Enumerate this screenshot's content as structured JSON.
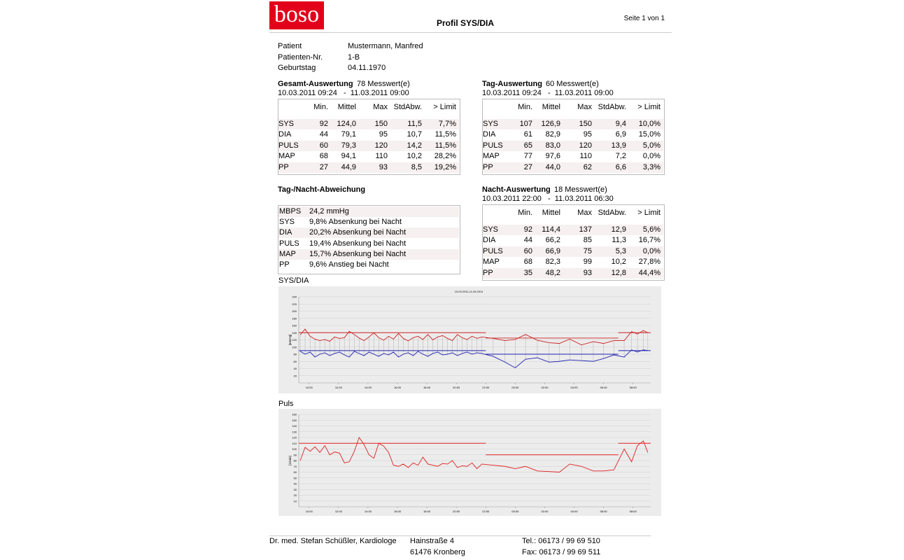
{
  "header": {
    "logo": "boso",
    "title": "Profil SYS/DIA",
    "page": "Seite 1 von 1"
  },
  "patient": {
    "rows": [
      [
        "Patient",
        "Mustermann, Manfred"
      ],
      [
        "Patienten-Nr.",
        "1-B"
      ],
      [
        "Geburtstag",
        "04.11.1970"
      ]
    ]
  },
  "tables": [
    {
      "title": "Gesamt-Auswertung",
      "count": "78 Messwert(e)",
      "range": "10.03.2011 09:24   -  11.03.2011 09:00",
      "header": [
        "Min.",
        "Mittel",
        "Max",
        "StdAbw.",
        "> Limit"
      ],
      "rows": [
        [
          "SYS",
          "92",
          "124,0",
          "150",
          "11,5",
          "7,7%"
        ],
        [
          "DIA",
          "44",
          "79,1",
          "95",
          "10,7",
          "11,5%"
        ],
        [
          "PULS",
          "60",
          "79,3",
          "120",
          "14,2",
          "11,5%"
        ],
        [
          "MAP",
          "68",
          "94,1",
          "110",
          "10,2",
          "28,2%"
        ],
        [
          "PP",
          "27",
          "44,9",
          "93",
          "8,5",
          "19,2%"
        ]
      ]
    },
    {
      "title": "Tag-Auswertung",
      "count": "60 Messwert(e)",
      "range": "10.03.2011 09:24   -  11.03.2011 09:00",
      "header": [
        "Min.",
        "Mittel",
        "Max",
        "StdAbw.",
        "> Limit"
      ],
      "rows": [
        [
          "SYS",
          "107",
          "126,9",
          "150",
          "9,4",
          "10,0%"
        ],
        [
          "DIA",
          "61",
          "82,9",
          "95",
          "6,9",
          "15,0%"
        ],
        [
          "PULS",
          "65",
          "83,0",
          "120",
          "13,9",
          "5,0%"
        ],
        [
          "MAP",
          "77",
          "97,6",
          "110",
          "7,2",
          "0,0%"
        ],
        [
          "PP",
          "27",
          "44,0",
          "62",
          "6,6",
          "3,3%"
        ]
      ]
    },
    {
      "title": "Nacht-Auswertung",
      "count": "18 Messwert(e)",
      "range": "10.03.2011 22:00   -  11.03.2011 06:30",
      "header": [
        "Min.",
        "Mittel",
        "Max",
        "StdAbw.",
        "> Limit"
      ],
      "rows": [
        [
          "SYS",
          "92",
          "114,4",
          "137",
          "12,9",
          "5,6%"
        ],
        [
          "DIA",
          "44",
          "66,2",
          "85",
          "11,3",
          "16,7%"
        ],
        [
          "PULS",
          "60",
          "66,9",
          "75",
          "5,3",
          "0,0%"
        ],
        [
          "MAP",
          "68",
          "82,3",
          "99",
          "10,2",
          "27,8%"
        ],
        [
          "PP",
          "35",
          "48,2",
          "93",
          "12,8",
          "44,4%"
        ]
      ]
    }
  ],
  "deviation": {
    "title": "Tag-/Nacht-Abweichung",
    "rows": [
      [
        "MBPS",
        "24,2 mmHg"
      ],
      [
        "SYS",
        "9,8% Absenkung bei Nacht"
      ],
      [
        "DIA",
        "20,2% Absenkung bei Nacht"
      ],
      [
        "PULS",
        "19,4% Absenkung bei Nacht"
      ],
      [
        "MAP",
        "15,7% Absenkung bei Nacht"
      ],
      [
        "PP",
        "9,6% Anstieg bei Nacht"
      ]
    ]
  },
  "chart_data": [
    {
      "type": "line",
      "title": "SYS/DIA",
      "subtitle": "10.03.2011-11.03.2011",
      "ylabel": "[mmHg]",
      "grid": true,
      "x": [
        9.4,
        9.73,
        10.07,
        10.4,
        10.73,
        11.07,
        11.4,
        11.73,
        12.07,
        12.4,
        12.73,
        13.07,
        13.4,
        13.73,
        14.07,
        14.4,
        14.73,
        15.07,
        15.4,
        15.73,
        16.07,
        16.4,
        16.73,
        17.07,
        17.4,
        17.73,
        18.07,
        18.4,
        18.73,
        19.07,
        19.4,
        19.73,
        20.07,
        20.4,
        20.73,
        21.07,
        21.4,
        21.73,
        22.5,
        23.3,
        24,
        24.7,
        25.5,
        26.3,
        27,
        27.7,
        28.5,
        29.3,
        30,
        30.7,
        31.4,
        31.9,
        32.3,
        32.7,
        33.0
      ],
      "xlim": [
        9.3,
        33.2
      ],
      "xticks": [
        {
          "value": 10,
          "label": "10:00"
        },
        {
          "value": 12,
          "label": "12:00"
        },
        {
          "value": 14,
          "label": "14:00"
        },
        {
          "value": 16,
          "label": "16:00"
        },
        {
          "value": 18,
          "label": "18:00"
        },
        {
          "value": 20,
          "label": "20:00"
        },
        {
          "value": 22,
          "label": "22:00"
        },
        {
          "value": 24,
          "label": "00:00"
        },
        {
          "value": 26,
          "label": "02:00"
        },
        {
          "value": 28,
          "label": "04:00"
        },
        {
          "value": 30,
          "label": "06:00"
        },
        {
          "value": 32,
          "label": "08:00"
        }
      ],
      "ylim": [
        0,
        240
      ],
      "yticks": [
        20,
        40,
        60,
        80,
        100,
        120,
        140,
        160,
        180,
        200,
        220,
        240
      ],
      "series": [
        {
          "color": "#cc2020",
          "values": [
            134,
            150,
            130,
            122,
            118,
            121,
            116,
            128,
            124,
            126,
            144,
            135,
            125,
            118,
            128,
            140,
            126,
            119,
            130,
            122,
            138,
            124,
            117,
            126,
            130,
            121,
            135,
            120,
            128,
            132,
            124,
            118,
            135,
            126,
            121,
            130,
            124,
            128,
            124,
            118,
            121,
            135,
            119,
            112,
            110,
            122,
            106,
            115,
            110,
            118,
            118,
            143,
            136,
            146,
            140
          ]
        },
        {
          "color": "#2020b0",
          "values": [
            88,
            80,
            86,
            72,
            80,
            84,
            76,
            82,
            86,
            78,
            72,
            88,
            82,
            76,
            86,
            80,
            74,
            82,
            78,
            86,
            72,
            80,
            84,
            76,
            88,
            80,
            74,
            82,
            86,
            78,
            80,
            84,
            76,
            82,
            86,
            80,
            84,
            82,
            74,
            58,
            42,
            66,
            70,
            58,
            60,
            64,
            62,
            60,
            68,
            78,
            72,
            92,
            86,
            92,
            90
          ]
        }
      ],
      "limit_lines": [
        {
          "color": "#cc2020",
          "x": [
            9.3,
            22
          ],
          "values": [
            140,
            140
          ]
        },
        {
          "color": "#cc2020",
          "x": [
            22,
            31
          ],
          "values": [
            125,
            125
          ]
        },
        {
          "color": "#cc2020",
          "x": [
            31,
            33.2
          ],
          "values": [
            140,
            140
          ]
        },
        {
          "color": "#2020b0",
          "x": [
            9.3,
            22
          ],
          "values": [
            90,
            90
          ]
        },
        {
          "color": "#2020b0",
          "x": [
            22,
            31
          ],
          "values": [
            80,
            80
          ]
        },
        {
          "color": "#2020b0",
          "x": [
            31,
            33.2
          ],
          "values": [
            90,
            90
          ]
        }
      ]
    },
    {
      "type": "line",
      "title": "Puls",
      "ylabel": "[1/min]",
      "grid": true,
      "x": [
        9.4,
        9.73,
        10.07,
        10.4,
        10.73,
        11.07,
        11.4,
        11.73,
        12.07,
        12.4,
        12.73,
        13.07,
        13.4,
        13.73,
        14.07,
        14.4,
        14.73,
        15.07,
        15.4,
        15.73,
        16.07,
        16.4,
        16.73,
        17.07,
        17.4,
        17.73,
        18.07,
        18.4,
        18.73,
        19.07,
        19.4,
        19.73,
        20.07,
        20.4,
        20.73,
        21.07,
        21.4,
        21.73,
        22.5,
        23.3,
        24,
        24.7,
        25.5,
        26.3,
        27,
        27.7,
        28.5,
        29.3,
        30,
        30.7,
        31.4,
        31.9,
        32.3,
        32.7,
        33.0
      ],
      "xlim": [
        9.3,
        33.2
      ],
      "xticks": [
        {
          "value": 10,
          "label": "10:00"
        },
        {
          "value": 12,
          "label": "12:00"
        },
        {
          "value": 14,
          "label": "14:00"
        },
        {
          "value": 16,
          "label": "16:00"
        },
        {
          "value": 18,
          "label": "18:00"
        },
        {
          "value": 20,
          "label": "20:00"
        },
        {
          "value": 22,
          "label": "22:00"
        },
        {
          "value": 24,
          "label": "00:00"
        },
        {
          "value": 26,
          "label": "02:00"
        },
        {
          "value": 28,
          "label": "04:00"
        },
        {
          "value": 30,
          "label": "06:00"
        },
        {
          "value": 32,
          "label": "08:00"
        }
      ],
      "ylim": [
        0,
        160
      ],
      "yticks": [
        10,
        20,
        30,
        40,
        50,
        60,
        70,
        80,
        90,
        100,
        110,
        120,
        130,
        140,
        150,
        160
      ],
      "series": [
        {
          "color": "#dd2020",
          "values": [
            80,
            103,
            96,
            104,
            94,
            106,
            90,
            95,
            93,
            76,
            78,
            96,
            120,
            108,
            90,
            84,
            110,
            105,
            94,
            72,
            70,
            74,
            68,
            76,
            72,
            86,
            74,
            72,
            70,
            75,
            74,
            80,
            68,
            71,
            70,
            76,
            66,
            74,
            72,
            70,
            66,
            70,
            62,
            61,
            60,
            74,
            70,
            62,
            62,
            64,
            100,
            78,
            106,
            114,
            94
          ]
        }
      ],
      "limit_lines": [
        {
          "color": "#dd2020",
          "x": [
            9.3,
            22
          ],
          "values": [
            110,
            110
          ]
        },
        {
          "color": "#dd2020",
          "x": [
            22,
            31
          ],
          "values": [
            90,
            90
          ]
        },
        {
          "color": "#dd2020",
          "x": [
            31,
            33.2
          ],
          "values": [
            110,
            110
          ]
        }
      ]
    }
  ],
  "footer": {
    "name": "Dr. med. Stefan Schüßler, Kardiologe",
    "street": "Hainstraße 4",
    "city": "61476 Kronberg",
    "tel": "Tel.: 06173 / 99 69 510",
    "fax": "Fax: 06173 / 99 69 511"
  }
}
